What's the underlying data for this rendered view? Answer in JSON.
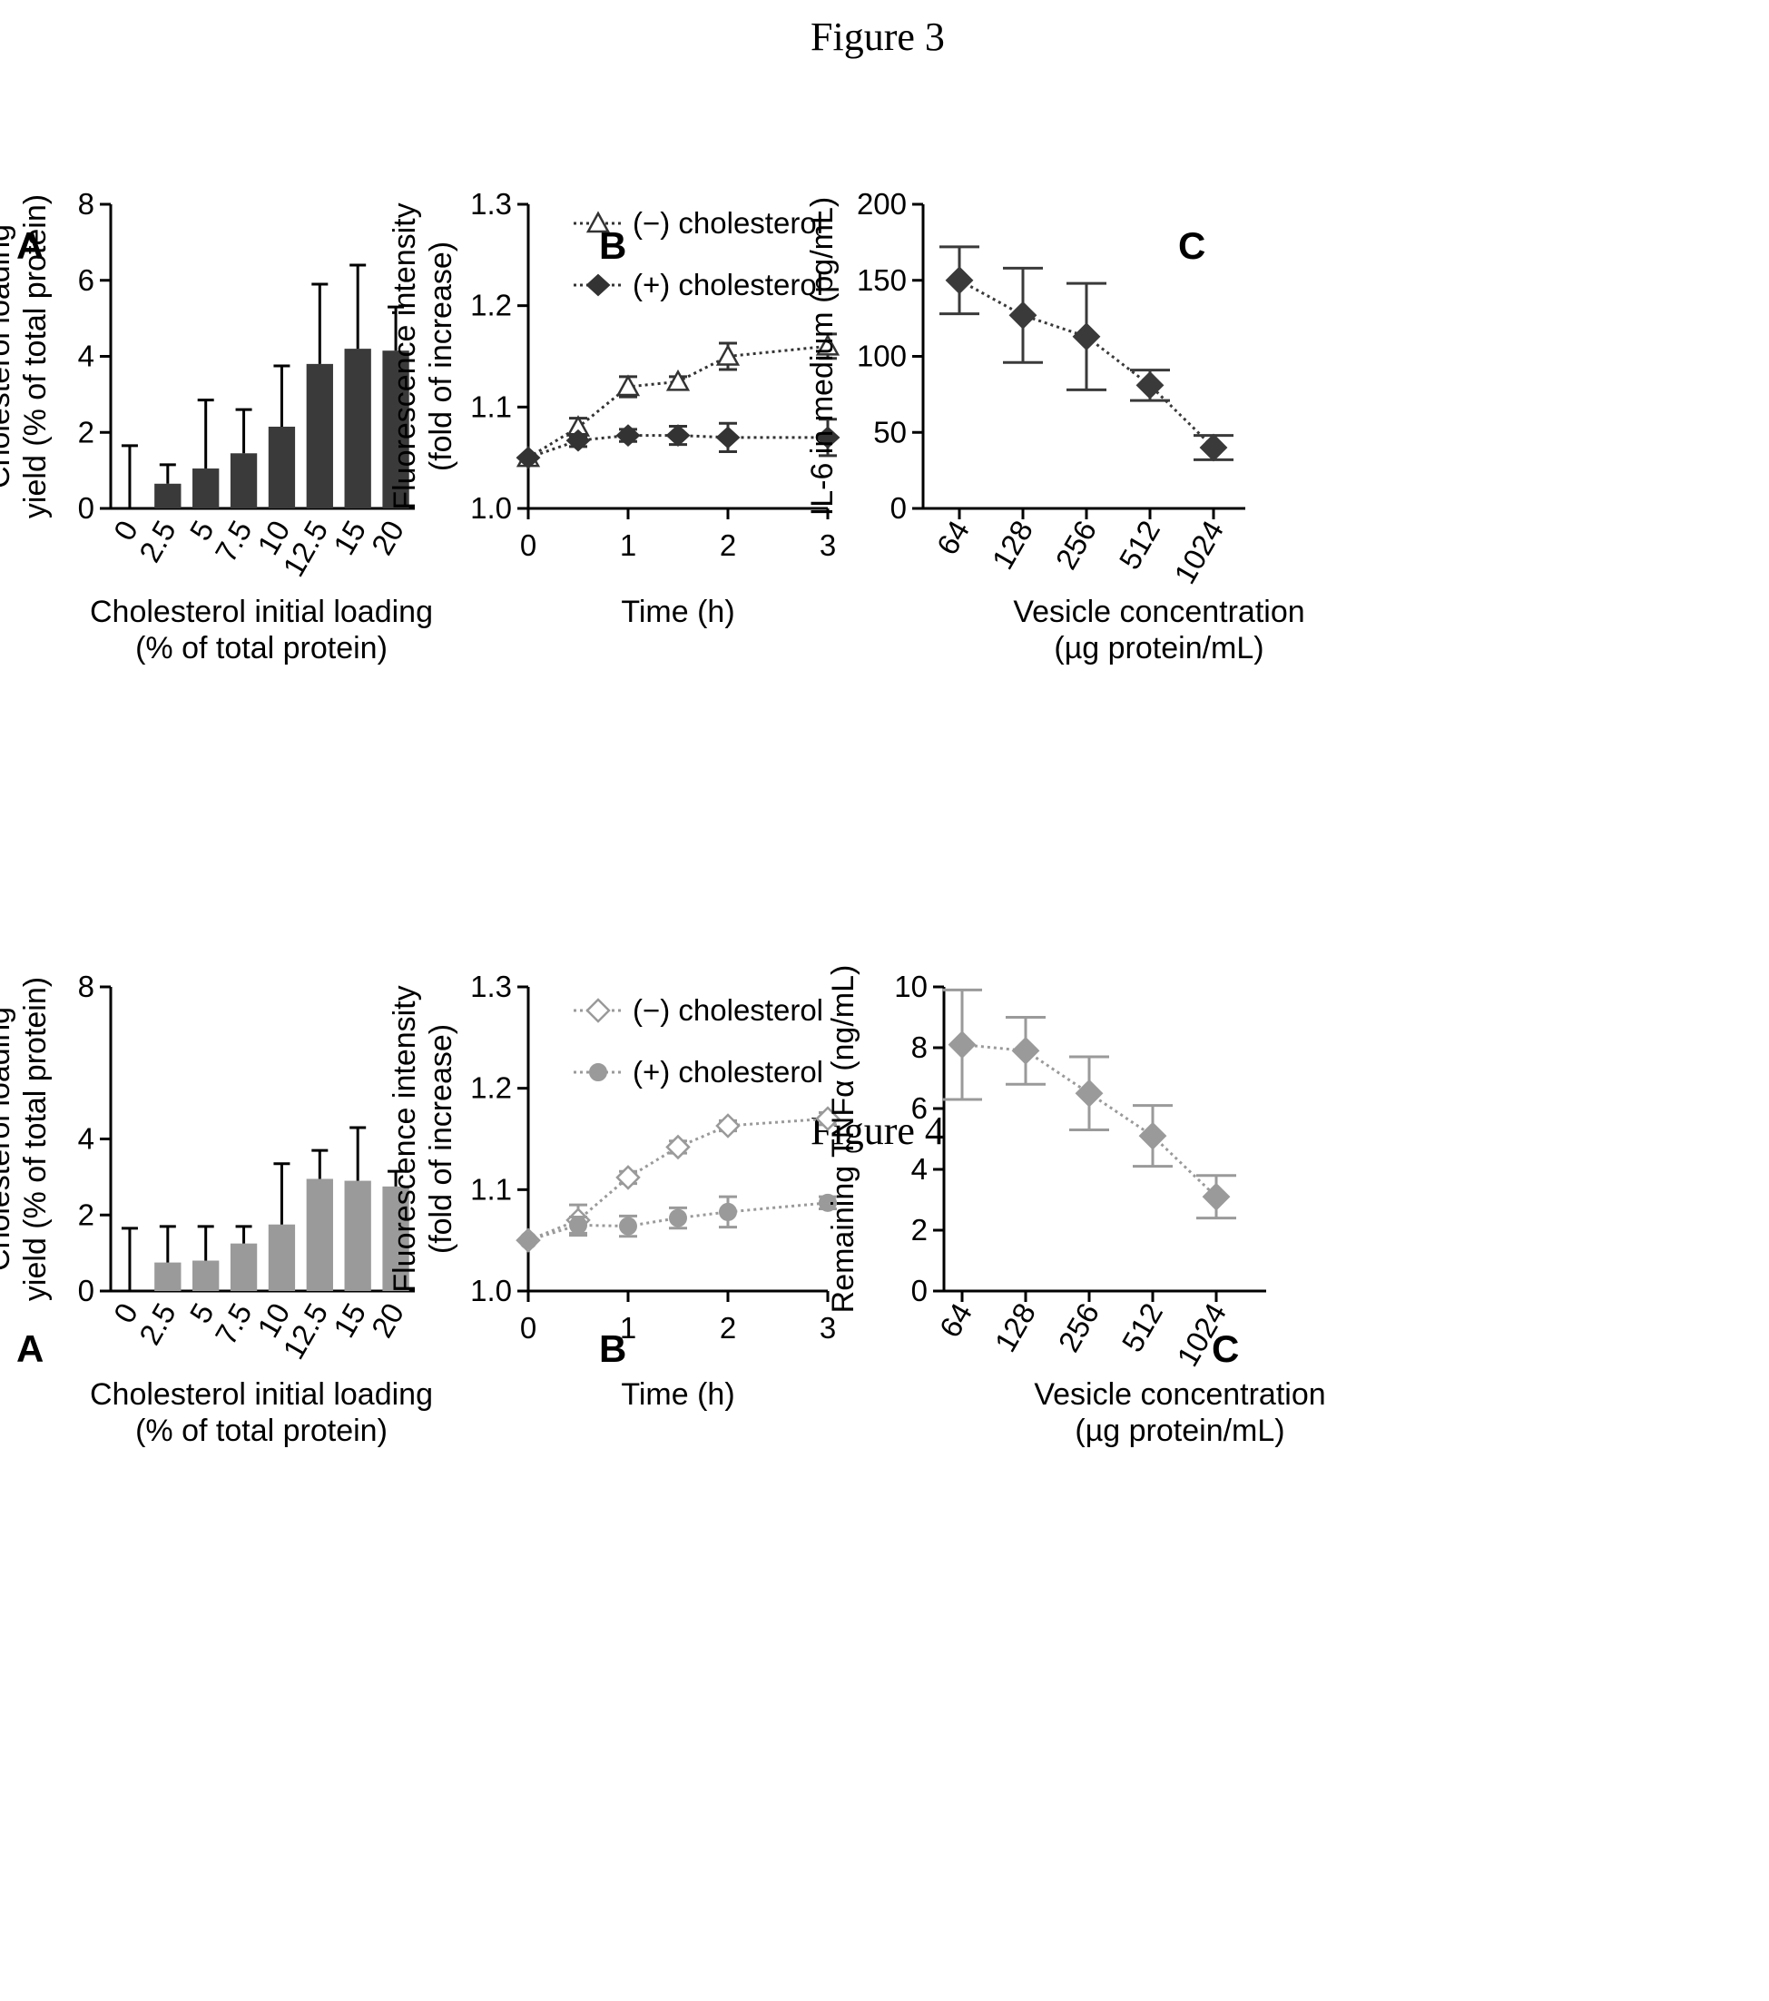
{
  "figures": [
    {
      "title": "Figure 3"
    },
    {
      "title": "Figure 4"
    }
  ],
  "colors": {
    "fig3_fill": "#3a3a3a",
    "fig4_fill": "#9a9a9a",
    "axis": "#000000"
  },
  "chart_data": [
    {
      "figure": "Figure 3",
      "panel": "A",
      "type": "bar",
      "xlabel": [
        "Cholesterol initial loading",
        "(% of total protein)"
      ],
      "ylabel": [
        "Cholesterol loading",
        "yield (% of total protein)"
      ],
      "ylim": [
        0,
        8
      ],
      "yticks": [
        "0",
        "2",
        "4",
        "6",
        "8"
      ],
      "categories": [
        "0",
        "2.5",
        "5",
        "7.5",
        "10",
        "12.5",
        "15",
        "20"
      ],
      "values": [
        0,
        0.65,
        1.05,
        1.45,
        2.15,
        3.8,
        4.2,
        4.15
      ],
      "errors": [
        1.65,
        0.5,
        1.8,
        1.15,
        1.6,
        2.1,
        2.2,
        1.15
      ]
    },
    {
      "figure": "Figure 3",
      "panel": "B",
      "type": "line",
      "xlabel": [
        "Time (h)"
      ],
      "ylabel": [
        "Fluorescence intensity",
        "(fold of increase)"
      ],
      "xlim": [
        0,
        3
      ],
      "ylim": [
        1.0,
        1.3
      ],
      "xticks": [
        "0",
        "1",
        "2",
        "3"
      ],
      "yticks": [
        "1.0",
        "1.1",
        "1.2",
        "1.3"
      ],
      "x": [
        0,
        0.5,
        1,
        1.5,
        2,
        3
      ],
      "series": [
        {
          "name": "(−) cholesterol",
          "marker": "triangle",
          "values": [
            1.05,
            1.08,
            1.12,
            1.125,
            1.15,
            1.16
          ],
          "errors": [
            0,
            0.009,
            0.01,
            0.005,
            0.013,
            0.012
          ]
        },
        {
          "name": "(+) cholesterol",
          "marker": "star",
          "values": [
            1.05,
            1.067,
            1.072,
            1.072,
            1.07,
            1.07
          ],
          "errors": [
            0,
            0.006,
            0.006,
            0.009,
            0.014,
            0.018
          ]
        }
      ]
    },
    {
      "figure": "Figure 3",
      "panel": "C",
      "type": "line",
      "xlabel": [
        "Vesicle concentration",
        "(µg protein/mL)"
      ],
      "ylabel": [
        "IL-6 in medium (pg/mL)"
      ],
      "ylim": [
        0,
        200
      ],
      "yticks": [
        "0",
        "50",
        "100",
        "150",
        "200"
      ],
      "categories": [
        "64",
        "128",
        "256",
        "512",
        "1024"
      ],
      "series": [
        {
          "marker": "diamond",
          "values": [
            150,
            127,
            113,
            81,
            40
          ],
          "errors": [
            22,
            31,
            35,
            10,
            8
          ]
        }
      ]
    },
    {
      "figure": "Figure 4",
      "panel": "A",
      "type": "bar",
      "xlabel": [
        "Cholesterol initial loading",
        "(% of total protein)"
      ],
      "ylabel": [
        "Cholesterol loading",
        "yield (% of total protein)"
      ],
      "ylim": [
        0,
        8
      ],
      "yticks": [
        "0",
        "2",
        "4",
        "8"
      ],
      "categories": [
        "0",
        "2.5",
        "5",
        "7.5",
        "10",
        "12.5",
        "15",
        "20"
      ],
      "values": [
        0,
        0.75,
        0.8,
        1.25,
        1.75,
        2.95,
        2.9,
        2.75
      ],
      "errors": [
        1.65,
        0.95,
        0.9,
        0.45,
        1.6,
        0.75,
        1.4,
        0.4
      ]
    },
    {
      "figure": "Figure 4",
      "panel": "B",
      "type": "line",
      "xlabel": [
        "Time (h)"
      ],
      "ylabel": [
        "Fluorescence intensity",
        "(fold of increase)"
      ],
      "xlim": [
        0,
        3
      ],
      "ylim": [
        1.0,
        1.3
      ],
      "xticks": [
        "0",
        "1",
        "2",
        "3"
      ],
      "yticks": [
        "1.0",
        "1.1",
        "1.2",
        "1.3"
      ],
      "x": [
        0,
        0.5,
        1,
        1.5,
        2,
        3
      ],
      "series": [
        {
          "name": "(−) cholesterol",
          "marker": "diamond-open",
          "values": [
            1.05,
            1.07,
            1.112,
            1.142,
            1.163,
            1.17
          ],
          "errors": [
            0,
            0.015,
            0.006,
            0.006,
            0.005,
            0.006
          ]
        },
        {
          "name": "(+) cholesterol",
          "marker": "circle",
          "values": [
            1.05,
            1.065,
            1.064,
            1.072,
            1.078,
            1.087
          ],
          "errors": [
            0,
            0.008,
            0.01,
            0.01,
            0.015,
            0.006
          ]
        }
      ]
    },
    {
      "figure": "Figure 4",
      "panel": "C",
      "type": "line",
      "xlabel": [
        "Vesicle concentration",
        "(µg protein/mL)"
      ],
      "ylabel": [
        "Remaining TNFα (ng/mL)"
      ],
      "ylim": [
        0,
        10
      ],
      "yticks": [
        "0",
        "2",
        "4",
        "6",
        "8",
        "10"
      ],
      "categories": [
        "64",
        "128",
        "256",
        "512",
        "1024"
      ],
      "series": [
        {
          "marker": "diamond",
          "values": [
            8.1,
            7.9,
            6.5,
            5.1,
            3.1
          ],
          "errors": [
            1.8,
            1.1,
            1.2,
            1.0,
            0.7
          ]
        }
      ]
    }
  ]
}
